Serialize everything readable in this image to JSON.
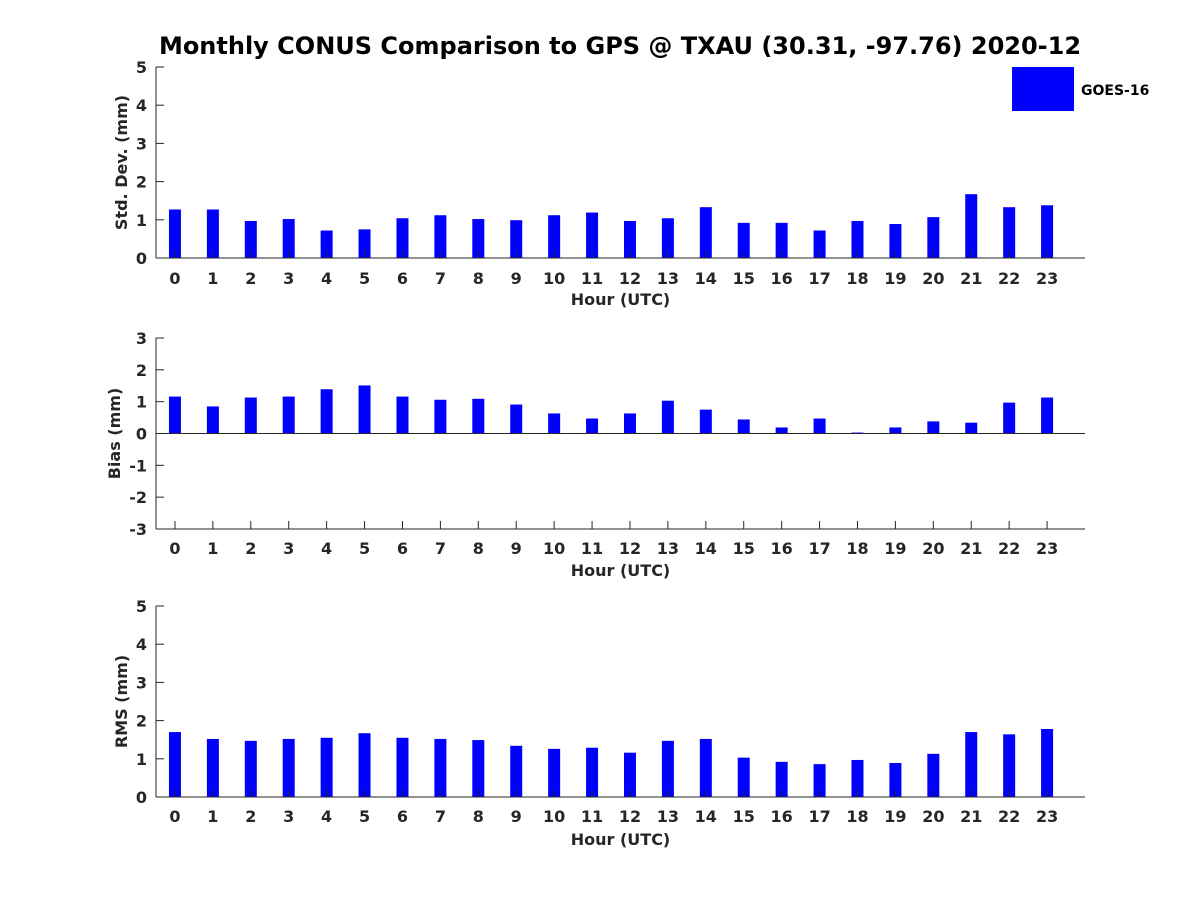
{
  "chart_title": "Monthly CONUS Comparison to GPS @ TXAU (30.31, -97.76) 2020-12",
  "legend": {
    "label": "GOES-16",
    "color": "#0000ff"
  },
  "chart_data": [
    {
      "type": "bar",
      "title": "Monthly CONUS Comparison to GPS @ TXAU (30.31, -97.76) 2020-12",
      "xlabel": "Hour (UTC)",
      "ylabel": "Std. Dev. (mm)",
      "ylim": [
        0,
        5
      ],
      "yticks": [
        "0",
        "1",
        "2",
        "3",
        "4",
        "5"
      ],
      "categories": [
        "0",
        "1",
        "2",
        "3",
        "4",
        "5",
        "6",
        "7",
        "8",
        "9",
        "10",
        "11",
        "12",
        "13",
        "14",
        "15",
        "16",
        "17",
        "18",
        "19",
        "20",
        "21",
        "22",
        "23"
      ],
      "series": [
        {
          "name": "GOES-16",
          "color": "#0000ff",
          "values": [
            1.27,
            1.27,
            0.97,
            1.02,
            0.72,
            0.75,
            1.04,
            1.12,
            1.02,
            0.99,
            1.12,
            1.19,
            0.97,
            1.04,
            1.33,
            0.92,
            0.92,
            0.72,
            0.97,
            0.89,
            1.07,
            1.67,
            1.33,
            1.38
          ]
        }
      ]
    },
    {
      "type": "bar",
      "title": "",
      "xlabel": "Hour (UTC)",
      "ylabel": "Bias (mm)",
      "ylim": [
        -3,
        3
      ],
      "yticks": [
        "-3",
        "-2",
        "-1",
        "0",
        "1",
        "2",
        "3"
      ],
      "categories": [
        "0",
        "1",
        "2",
        "3",
        "4",
        "5",
        "6",
        "7",
        "8",
        "9",
        "10",
        "11",
        "12",
        "13",
        "14",
        "15",
        "16",
        "17",
        "18",
        "19",
        "20",
        "21",
        "22",
        "23"
      ],
      "series": [
        {
          "name": "GOES-16",
          "color": "#0000ff",
          "values": [
            1.16,
            0.85,
            1.13,
            1.16,
            1.39,
            1.51,
            1.16,
            1.06,
            1.09,
            0.91,
            0.63,
            0.47,
            0.63,
            1.03,
            0.75,
            0.44,
            0.19,
            0.47,
            0.03,
            0.19,
            0.38,
            0.34,
            0.97,
            1.13
          ]
        }
      ]
    },
    {
      "type": "bar",
      "title": "",
      "xlabel": "Hour (UTC)",
      "ylabel": "RMS (mm)",
      "ylim": [
        0,
        5
      ],
      "yticks": [
        "0",
        "1",
        "2",
        "3",
        "4",
        "5"
      ],
      "categories": [
        "0",
        "1",
        "2",
        "3",
        "4",
        "5",
        "6",
        "7",
        "8",
        "9",
        "10",
        "11",
        "12",
        "13",
        "14",
        "15",
        "16",
        "17",
        "18",
        "19",
        "20",
        "21",
        "22",
        "23"
      ],
      "series": [
        {
          "name": "GOES-16",
          "color": "#0000ff",
          "values": [
            1.7,
            1.52,
            1.47,
            1.52,
            1.55,
            1.67,
            1.55,
            1.52,
            1.49,
            1.34,
            1.26,
            1.29,
            1.16,
            1.47,
            1.52,
            1.03,
            0.92,
            0.86,
            0.97,
            0.89,
            1.13,
            1.7,
            1.64,
            1.78
          ]
        }
      ]
    }
  ]
}
